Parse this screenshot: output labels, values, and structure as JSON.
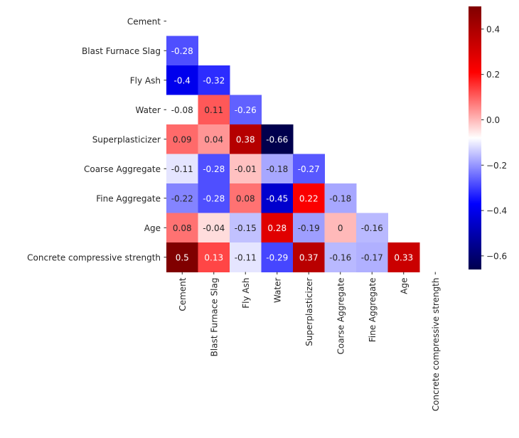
{
  "chart_data": {
    "type": "heatmap",
    "title": "",
    "xlabel": "",
    "ylabel": "",
    "mask": "upper-triangle-including-diagonal",
    "rows": [
      "Cement",
      "Blast Furnace Slag",
      "Fly Ash",
      "Water",
      "Superplasticizer",
      "Coarse Aggregate",
      "Fine Aggregate",
      "Age",
      "Concrete compressive strength"
    ],
    "columns": [
      "Cement",
      "Blast Furnace Slag",
      "Fly Ash",
      "Water",
      "Superplasticizer",
      "Coarse Aggregate",
      "Fine Aggregate",
      "Age",
      "Concrete compressive strength"
    ],
    "values": [
      [],
      [
        -0.28
      ],
      [
        -0.4,
        -0.32
      ],
      [
        -0.08,
        0.11,
        -0.26
      ],
      [
        0.09,
        0.04,
        0.38,
        -0.66
      ],
      [
        -0.11,
        -0.28,
        -0.01,
        -0.18,
        -0.27
      ],
      [
        -0.22,
        -0.28,
        0.08,
        -0.45,
        0.22,
        -0.18
      ],
      [
        0.08,
        -0.04,
        -0.15,
        0.28,
        -0.19,
        0,
        -0.16
      ],
      [
        0.5,
        0.13,
        -0.11,
        -0.29,
        0.37,
        -0.16,
        -0.17,
        0.33
      ]
    ],
    "colormap": "seismic",
    "colormap_stops": [
      "#00004d",
      "#0000ff",
      "#ffffff",
      "#ff0000",
      "#800000"
    ],
    "vmin": -0.66,
    "vmax": 0.5,
    "colorbar": {
      "ticks": [
        0.4,
        0.2,
        0.0,
        -0.2,
        -0.4,
        -0.6
      ],
      "tick_labels": [
        "0.4",
        "0.2",
        "0.0",
        "−0.2",
        "−0.4",
        "−0.6"
      ],
      "position": "right"
    }
  }
}
